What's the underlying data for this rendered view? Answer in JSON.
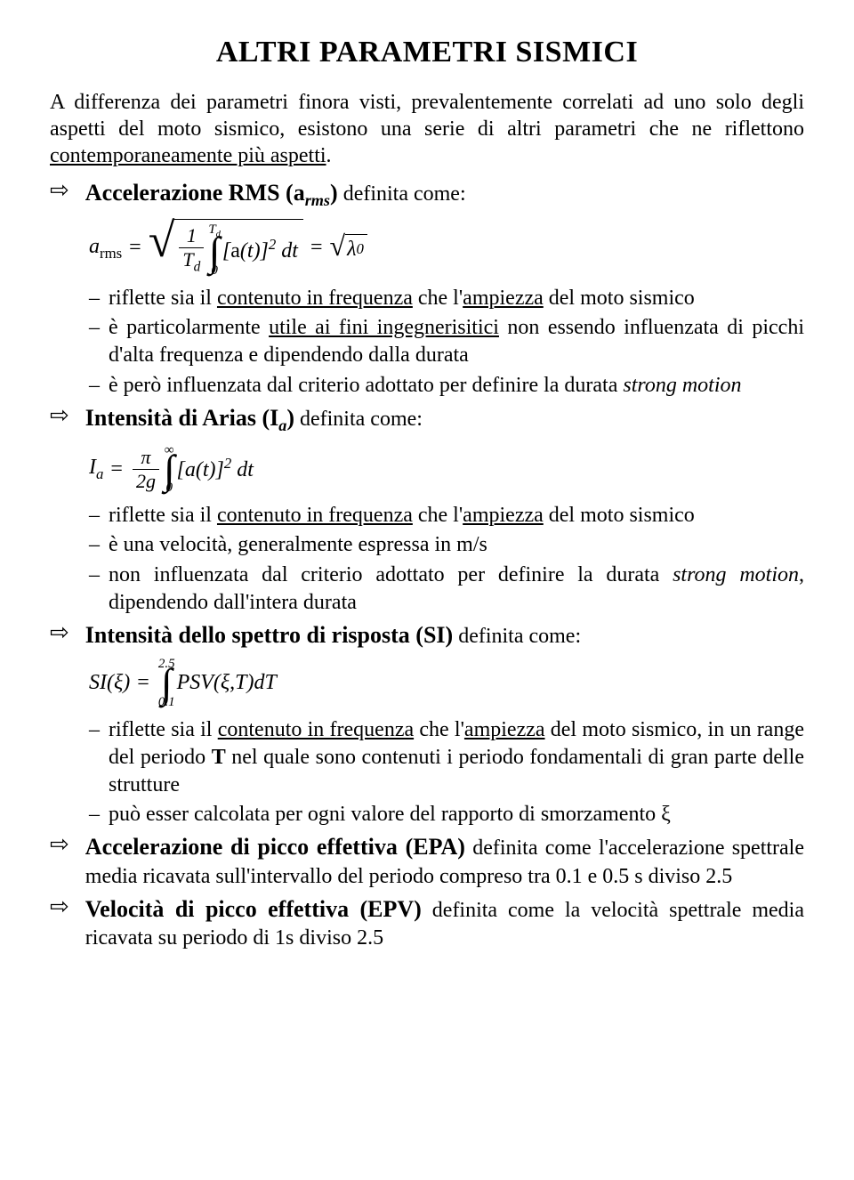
{
  "title": "ALTRI PARAMETRI SISMICI",
  "intro": "A differenza dei parametri finora visti, prevalentemente correlati ad uno solo degli aspetti del moto sismico, esistono una serie di altri parametri che ne riflettono <u>contemporaneamente più aspetti</u>.",
  "s1": {
    "heading": "<b>Accelerazione RMS (a<sub>rms</sub>)</b> definita come:",
    "formula": {
      "lhs": "a<sub class=\"nb\">rms</sub>",
      "frac_num": "1",
      "frac_den": "T<sub>d</sub>",
      "int_sup": "T<sub>d</sub>",
      "int_sub": "0",
      "integrand": "[<span class=\"nb\">a</span>(t)]<sup>2</sup> dt",
      "rhs": "λ<sub>0</sub>"
    },
    "bullets": [
      "riflette sia il <u>contenuto in frequenza</u> che l'<u>ampiezza</u> del moto sismico",
      "è particolarmente <u>utile ai fini ingegnerisitici</u> non essendo influenzata di picchi d'alta frequenza e dipendendo dalla durata",
      "è però influenzata dal criterio adottato per definire la durata <i>strong motion</i>"
    ]
  },
  "s2": {
    "heading": "<b>Intensità di Arias (I<sub>a</sub>)</b> definita come:",
    "formula": {
      "lhs": "I<sub>a</sub>",
      "frac_num": "π",
      "frac_den": "2g",
      "int_sup": "∞",
      "int_sub": "0",
      "integrand": "[a(t)]<sup>2</sup> dt"
    },
    "bullets": [
      "riflette sia il <u>contenuto in frequenza</u> che l'<u>ampiezza</u> del moto sismico",
      "è una velocità, generalmente espressa in m/s",
      "non influenzata dal criterio adottato per definire la durata <i>strong motion</i>, dipendendo dall'intera durata"
    ]
  },
  "s3": {
    "heading": "<b>Intensità dello spettro di risposta (SI)</b> definita come:",
    "formula": {
      "lhs": "SI(ξ)",
      "int_sup": "2.5",
      "int_sub": "0.1",
      "integrand": "PSV(ξ,T)dT"
    },
    "bullets": [
      "riflette sia il <u>contenuto in frequenza</u> che l'<u>ampiezza</u> del moto sismico, in un range del periodo <b>T</b> nel quale sono contenuti i periodo fondamentali di gran parte delle strutture",
      "può esser calcolata per ogni valore del rapporto di smorzamento ξ"
    ]
  },
  "s4": {
    "heading": "<b>Accelerazione di picco effettiva (EPA)</b> definita come l'accelerazione spettrale media ricavata sull'intervallo del periodo compreso tra 0.1 e 0.5 s diviso 2.5"
  },
  "s5": {
    "heading": "<b>Velocità di picco effettiva (EPV)</b> definita come la velocità spettrale media ricavata su periodo di 1s diviso 2.5"
  }
}
